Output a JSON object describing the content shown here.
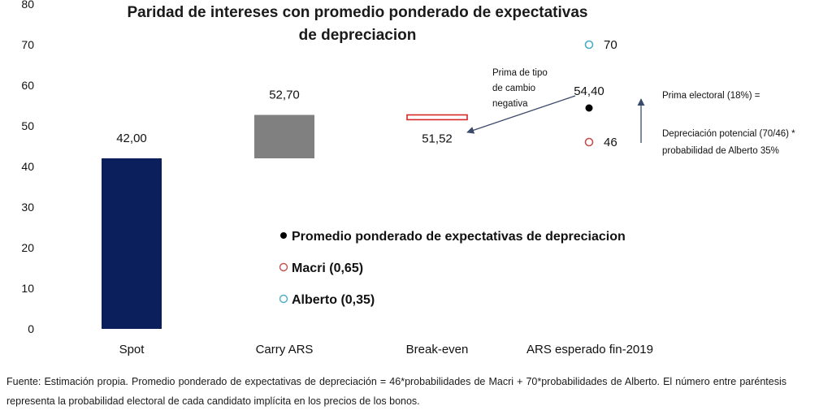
{
  "chart_data": {
    "type": "bar",
    "title_line1": "Paridad de intereses con promedio ponderado de expectativas",
    "title_line2": "de depreciacion",
    "ylim": [
      0,
      80
    ],
    "yticks": [
      0,
      10,
      20,
      30,
      40,
      50,
      60,
      70,
      80
    ],
    "categories": [
      "Spot",
      "Carry ARS",
      "Break-even",
      "ARS esperado fin-2019"
    ],
    "bars": [
      {
        "category": "Spot",
        "start": 0,
        "end": 42.0,
        "label": "42,00",
        "color": "#0b1f5c",
        "style": "solid"
      },
      {
        "category": "Carry ARS",
        "start": 42.0,
        "end": 52.7,
        "label": "52,70",
        "color": "#808080",
        "style": "solid"
      },
      {
        "category": "Break-even",
        "start": 51.52,
        "end": 52.7,
        "label": "51,52",
        "color": "#d62728",
        "style": "outline"
      }
    ],
    "points": [
      {
        "category": "ARS esperado fin-2019",
        "value": 70,
        "label": "70",
        "marker": "open-circle",
        "color": "#4bacc6"
      },
      {
        "category": "ARS esperado fin-2019",
        "value": 54.4,
        "label": "54,40",
        "marker": "filled-circle",
        "color": "#000000"
      },
      {
        "category": "ARS esperado fin-2019",
        "value": 46,
        "label": "46",
        "marker": "open-circle",
        "color": "#c0504d"
      }
    ],
    "legend": [
      {
        "label": "Promedio ponderado de expectativas de depreciacion",
        "marker": "filled-circle",
        "color": "#000000"
      },
      {
        "label": "Macri  (0,65)",
        "marker": "open-circle",
        "color": "#c0504d"
      },
      {
        "label": "Alberto (0,35)",
        "marker": "open-circle",
        "color": "#4bacc6"
      }
    ],
    "annotations": {
      "prima_tipo": [
        "Prima de tipo",
        "de cambio",
        "negativa"
      ],
      "prima_electoral": "Prima electoral (18%) =",
      "depreciacion_line1": "Depreciación potencial (70/46) *",
      "depreciacion_line2": "probabilidad de Alberto 35%"
    }
  },
  "footnote": "Fuente: Estimación propia. Promedio ponderado de expectativas de depreciación = 46*probabilidades de Macri + 70*probabilidades de Alberto. El número entre paréntesis representa la probabilidad electoral de cada candidato implícita en los precios de los bonos."
}
